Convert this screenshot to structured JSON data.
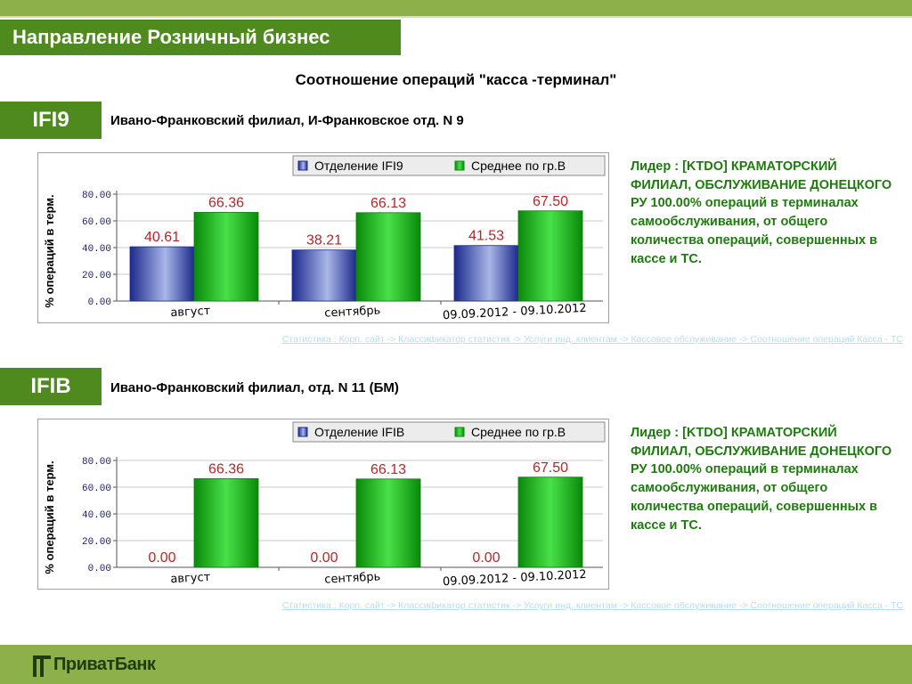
{
  "header": {
    "direction_title": "Направление Розничный бизнес",
    "main_title": "Соотношение операций \"касса -терминал\""
  },
  "colors": {
    "brand_green": "#4f8a1e",
    "bar_series1": "#2b3fa3",
    "bar_series2": "#11a611",
    "leader_text": "#1f7a10",
    "value_label": "#b0282a"
  },
  "sections": [
    {
      "code": "IFI9",
      "branch": "Ивано-Франковский филиал, И-Франковское отд. N 9",
      "leader": "Лидер : [KTDO] КРАМАТОРСКИЙ ФИЛИАЛ, ОБСЛУЖИВАНИЕ ДОНЕЦКОГО РУ 100.00% операций в терминалах самообслуживания, от общего количества операций, совершенных в кассе и ТС.",
      "link": "Статистика : Корп. сайт -> Классификатор статистик -> Услуги инд. клиентам -> Кассовое обслуживание -> Соотношение операций Касса - ТС"
    },
    {
      "code": "IFIB",
      "branch": "Ивано-Франковский филиал, отд. N 11 (БМ)",
      "leader": "Лидер : [KTDO] КРАМАТОРСКИЙ ФИЛИАЛ, ОБСЛУЖИВАНИЕ ДОНЕЦКОГО РУ 100.00% операций в терминалах самообслуживания, от общего количества операций, совершенных в кассе и ТС.",
      "link": "Статистика : Корп. сайт -> Классификатор статистик -> Услуги инд. клиентам -> Кассовое обслуживание -> Соотношение операций Касса - ТС"
    }
  ],
  "chart_data": [
    {
      "type": "bar",
      "categories": [
        "август",
        "сентябрь",
        "09.09.2012 - 09.10.2012"
      ],
      "series": [
        {
          "name": "Отделение IFI9",
          "values": [
            40.61,
            38.21,
            41.53
          ]
        },
        {
          "name": "Среднее по гр.В",
          "values": [
            66.36,
            66.13,
            67.5
          ]
        }
      ],
      "ylabel": "% операций в терм.",
      "ylim": [
        0,
        80
      ],
      "yticks": [
        "0.00",
        "20.00",
        "40.00",
        "60.00",
        "80.00"
      ],
      "grid": true,
      "legend": "top"
    },
    {
      "type": "bar",
      "categories": [
        "август",
        "сентябрь",
        "09.09.2012 - 09.10.2012"
      ],
      "series": [
        {
          "name": "Отделение IFIB",
          "values": [
            0.0,
            0.0,
            0.0
          ]
        },
        {
          "name": "Среднее по гр.В",
          "values": [
            66.36,
            66.13,
            67.5
          ]
        }
      ],
      "ylabel": "% операций в терм.",
      "ylim": [
        0,
        80
      ],
      "yticks": [
        "0.00",
        "20.00",
        "40.00",
        "60.00",
        "80.00"
      ],
      "grid": true,
      "legend": "top"
    }
  ],
  "brand": {
    "logo_text": "ПриватБанк"
  }
}
